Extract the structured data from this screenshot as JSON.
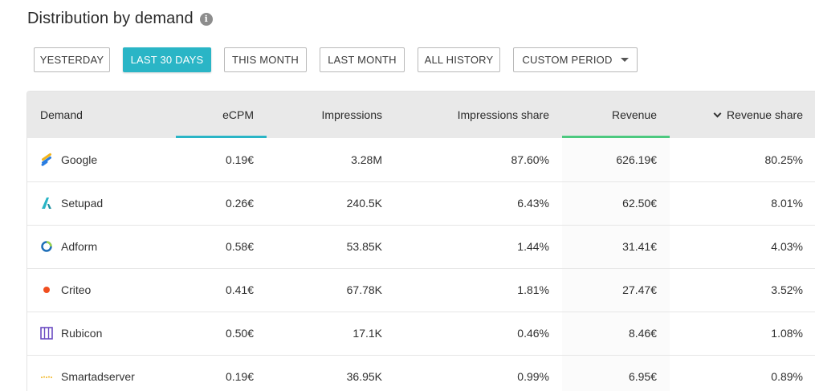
{
  "header": {
    "title": "Distribution by demand",
    "info_icon": "i"
  },
  "filters": [
    {
      "label": "YESTERDAY",
      "active": false
    },
    {
      "label": "LAST 30 DAYS",
      "active": true
    },
    {
      "label": "THIS MONTH",
      "active": false
    },
    {
      "label": "LAST MONTH",
      "active": false
    },
    {
      "label": "ALL HISTORY",
      "active": false
    },
    {
      "label": "CUSTOM PERIOD",
      "active": false,
      "has_dropdown": true
    }
  ],
  "colors": {
    "accent": "#2ab5c6",
    "revenue_underline": "#4cc97f",
    "header_bg": "#e9e9e9"
  },
  "table": {
    "columns": {
      "demand": "Demand",
      "ecpm": "eCPM",
      "impressions": "Impressions",
      "impressions_share": "Impressions share",
      "revenue": "Revenue",
      "revenue_share": "Revenue share"
    },
    "sorted_by": "revenue_share",
    "sort_direction": "descending",
    "rows": [
      {
        "demand": "Google",
        "logo": "google-logo-icon",
        "ecpm": "0.19€",
        "impressions": "3.28M",
        "impressions_share": "87.60%",
        "revenue": "626.19€",
        "revenue_share": "80.25%"
      },
      {
        "demand": "Setupad",
        "logo": "setupad-logo-icon",
        "ecpm": "0.26€",
        "impressions": "240.5K",
        "impressions_share": "6.43%",
        "revenue": "62.50€",
        "revenue_share": "8.01%"
      },
      {
        "demand": "Adform",
        "logo": "adform-logo-icon",
        "ecpm": "0.58€",
        "impressions": "53.85K",
        "impressions_share": "1.44%",
        "revenue": "31.41€",
        "revenue_share": "4.03%"
      },
      {
        "demand": "Criteo",
        "logo": "criteo-logo-icon",
        "ecpm": "0.41€",
        "impressions": "67.78K",
        "impressions_share": "1.81%",
        "revenue": "27.47€",
        "revenue_share": "3.52%"
      },
      {
        "demand": "Rubicon",
        "logo": "rubicon-logo-icon",
        "ecpm": "0.50€",
        "impressions": "17.1K",
        "impressions_share": "0.46%",
        "revenue": "8.46€",
        "revenue_share": "1.08%"
      },
      {
        "demand": "Smartadserver",
        "logo": "smartadserver-logo-icon",
        "ecpm": "0.19€",
        "impressions": "36.95K",
        "impressions_share": "0.99%",
        "revenue": "6.95€",
        "revenue_share": "0.89%"
      }
    ]
  }
}
